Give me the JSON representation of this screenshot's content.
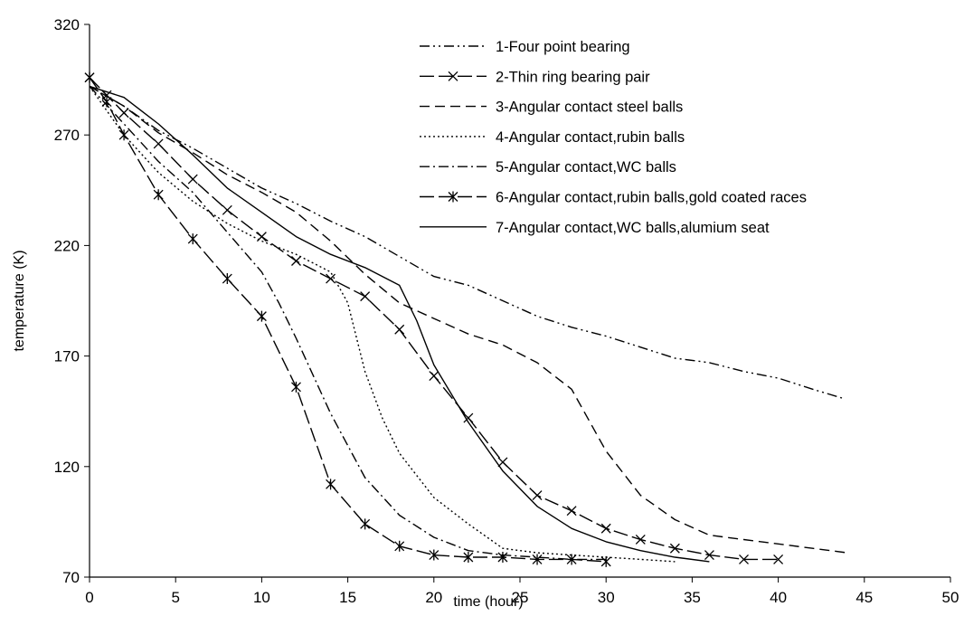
{
  "chart_data": {
    "type": "line",
    "title": "",
    "xlabel": "time (hour)",
    "ylabel": "temperature (K)",
    "xlim": [
      0,
      50
    ],
    "ylim": [
      70,
      320
    ],
    "xticks": [
      0,
      5,
      10,
      15,
      20,
      25,
      30,
      35,
      40,
      45,
      50
    ],
    "yticks": [
      70,
      120,
      170,
      220,
      270,
      320
    ],
    "grid": false,
    "legend_position": "top-right",
    "series": [
      {
        "name": "1-Four point bearing",
        "style": "dash-dot-dot",
        "marker": "none",
        "x": [
          0,
          2,
          4,
          6,
          8,
          10,
          12,
          14,
          16,
          18,
          20,
          22,
          24,
          26,
          28,
          30,
          32,
          34,
          36,
          38,
          40,
          42,
          43.7
        ],
        "y": [
          292,
          283,
          272,
          264,
          255,
          246,
          239,
          231,
          224,
          215,
          206,
          202,
          195,
          188,
          183,
          179,
          174,
          169,
          167,
          163,
          160,
          155,
          151
        ]
      },
      {
        "name": "2-Thin ring bearing pair",
        "style": "long-dash",
        "marker": "x",
        "x": [
          0,
          1,
          2,
          4,
          6,
          8,
          10,
          12,
          14,
          16,
          18,
          20,
          22,
          24,
          26,
          28,
          30,
          32,
          34,
          36,
          38,
          40
        ],
        "y": [
          296,
          288,
          280,
          266,
          250,
          236,
          224,
          213,
          205,
          197,
          182,
          161,
          142,
          122,
          107,
          100,
          92,
          87,
          83,
          80,
          78,
          78
        ]
      },
      {
        "name": "3-Angular contact steel balls",
        "style": "dashed",
        "marker": "none",
        "x": [
          0,
          2,
          4,
          6,
          8,
          10,
          12,
          14,
          16,
          18,
          20,
          22,
          24,
          26,
          28,
          30,
          32,
          34,
          36,
          38,
          40,
          42,
          44
        ],
        "y": [
          292,
          283,
          271,
          262,
          252,
          244,
          235,
          222,
          207,
          194,
          187,
          180,
          175,
          167,
          155,
          127,
          107,
          96,
          89,
          87,
          85,
          83,
          81
        ]
      },
      {
        "name": "4-Angular contact,rubin balls",
        "style": "dotted",
        "marker": "none",
        "x": [
          0,
          2,
          4,
          6,
          8,
          10,
          12,
          14,
          15,
          16,
          17,
          18,
          20,
          22,
          24,
          26,
          28,
          30,
          32,
          34
        ],
        "y": [
          292,
          270,
          253,
          240,
          230,
          222,
          216,
          208,
          194,
          163,
          142,
          126,
          106,
          94,
          83,
          81,
          80,
          79,
          78,
          77
        ]
      },
      {
        "name": "5-Angular contact,WC balls",
        "style": "dash-dot",
        "marker": "none",
        "x": [
          0,
          2,
          4,
          6,
          8,
          10,
          11,
          12,
          14,
          16,
          18,
          20,
          22,
          24,
          26,
          28,
          30
        ],
        "y": [
          292,
          275,
          258,
          244,
          226,
          208,
          194,
          178,
          144,
          115,
          98,
          88,
          82,
          80,
          79,
          78,
          78
        ]
      },
      {
        "name": "6-Angular contact,rubin balls,gold coated races",
        "style": "long-dash",
        "marker": "asterisk",
        "x": [
          0,
          1,
          2,
          4,
          6,
          8,
          10,
          12,
          14,
          16,
          18,
          20,
          22,
          24,
          26,
          28,
          30
        ],
        "y": [
          296,
          285,
          270,
          243,
          223,
          205,
          188,
          156,
          112,
          94,
          84,
          80,
          79,
          79,
          78,
          78,
          77
        ]
      },
      {
        "name": "7-Angular contact,WC balls,alumium seat",
        "style": "solid",
        "marker": "none",
        "x": [
          0,
          2,
          4,
          6,
          8,
          10,
          12,
          14,
          16,
          18,
          19,
          20,
          22,
          24,
          26,
          28,
          30,
          32,
          34,
          36
        ],
        "y": [
          292,
          287,
          275,
          261,
          246,
          235,
          224,
          216,
          210,
          202,
          186,
          166,
          140,
          118,
          102,
          92,
          86,
          82,
          79,
          77
        ]
      }
    ]
  }
}
